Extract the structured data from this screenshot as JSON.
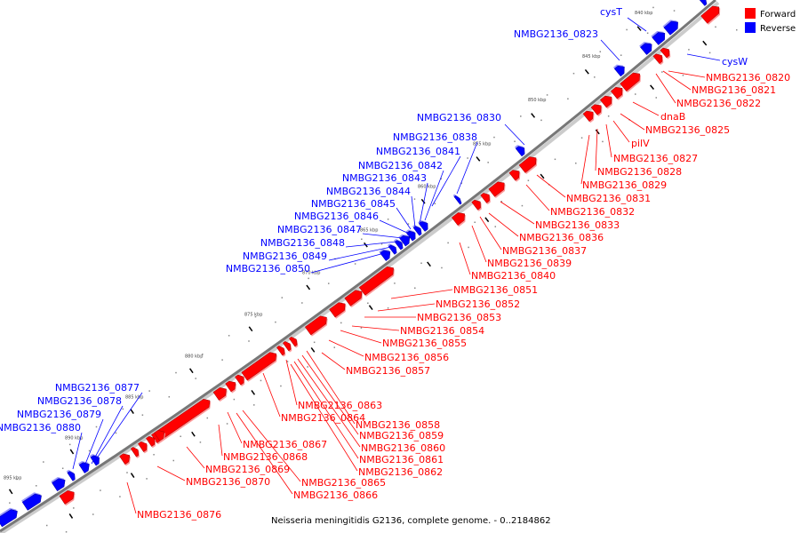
{
  "colors": {
    "forward": "#ff0000",
    "reverse": "#0000ff",
    "backbone": "#888888"
  },
  "legend": {
    "forward": "Forward",
    "reverse": "Reverse"
  },
  "caption": "Neisseria meningitidis G2136, complete genome. - 0..2184862",
  "scale_ticks": [
    "840 kbp",
    "845 kbp",
    "850 kbp",
    "855 kbp",
    "860 kbp",
    "865 kbp",
    "870 kbp",
    "875 kbp",
    "880 kbp",
    "885 kbp",
    "890 kbp",
    "895 kbp"
  ],
  "labels": [
    {
      "text": "cysT",
      "strand": "reverse"
    },
    {
      "text": "NMBG2136_0823",
      "strand": "reverse"
    },
    {
      "text": "cysW",
      "strand": "reverse"
    },
    {
      "text": "NMBG2136_0830",
      "strand": "reverse"
    },
    {
      "text": "NMBG2136_0838",
      "strand": "reverse"
    },
    {
      "text": "NMBG2136_0841",
      "strand": "reverse"
    },
    {
      "text": "NMBG2136_0842",
      "strand": "reverse"
    },
    {
      "text": "NMBG2136_0843",
      "strand": "reverse"
    },
    {
      "text": "NMBG2136_0844",
      "strand": "reverse"
    },
    {
      "text": "NMBG2136_0845",
      "strand": "reverse"
    },
    {
      "text": "NMBG2136_0846",
      "strand": "reverse"
    },
    {
      "text": "NMBG2136_0847",
      "strand": "reverse"
    },
    {
      "text": "NMBG2136_0848",
      "strand": "reverse"
    },
    {
      "text": "NMBG2136_0849",
      "strand": "reverse"
    },
    {
      "text": "NMBG2136_0850",
      "strand": "reverse"
    },
    {
      "text": "NMBG2136_0877",
      "strand": "reverse"
    },
    {
      "text": "NMBG2136_0878",
      "strand": "reverse"
    },
    {
      "text": "NMBG2136_0879",
      "strand": "reverse"
    },
    {
      "text": "NMBG2136_0880",
      "strand": "reverse"
    },
    {
      "text": "NMBG2136_0820",
      "strand": "forward"
    },
    {
      "text": "NMBG2136_0821",
      "strand": "forward"
    },
    {
      "text": "NMBG2136_0822",
      "strand": "forward"
    },
    {
      "text": "dnaB",
      "strand": "forward"
    },
    {
      "text": "NMBG2136_0825",
      "strand": "forward"
    },
    {
      "text": "pilV",
      "strand": "forward"
    },
    {
      "text": "NMBG2136_0827",
      "strand": "forward"
    },
    {
      "text": "NMBG2136_0828",
      "strand": "forward"
    },
    {
      "text": "NMBG2136_0829",
      "strand": "forward"
    },
    {
      "text": "NMBG2136_0831",
      "strand": "forward"
    },
    {
      "text": "NMBG2136_0832",
      "strand": "forward"
    },
    {
      "text": "NMBG2136_0833",
      "strand": "forward"
    },
    {
      "text": "NMBG2136_0836",
      "strand": "forward"
    },
    {
      "text": "NMBG2136_0837",
      "strand": "forward"
    },
    {
      "text": "NMBG2136_0839",
      "strand": "forward"
    },
    {
      "text": "NMBG2136_0840",
      "strand": "forward"
    },
    {
      "text": "NMBG2136_0851",
      "strand": "forward"
    },
    {
      "text": "NMBG2136_0852",
      "strand": "forward"
    },
    {
      "text": "NMBG2136_0853",
      "strand": "forward"
    },
    {
      "text": "NMBG2136_0854",
      "strand": "forward"
    },
    {
      "text": "NMBG2136_0855",
      "strand": "forward"
    },
    {
      "text": "NMBG2136_0856",
      "strand": "forward"
    },
    {
      "text": "NMBG2136_0857",
      "strand": "forward"
    },
    {
      "text": "NMBG2136_0863",
      "strand": "forward"
    },
    {
      "text": "NMBG2136_0864",
      "strand": "forward"
    },
    {
      "text": "NMBG2136_0858",
      "strand": "forward"
    },
    {
      "text": "NMBG2136_0859",
      "strand": "forward"
    },
    {
      "text": "NMBG2136_0860",
      "strand": "forward"
    },
    {
      "text": "NMBG2136_0861",
      "strand": "forward"
    },
    {
      "text": "NMBG2136_0862",
      "strand": "forward"
    },
    {
      "text": "NMBG2136_0865",
      "strand": "forward"
    },
    {
      "text": "NMBG2136_0866",
      "strand": "forward"
    },
    {
      "text": "NMBG2136_0867",
      "strand": "forward"
    },
    {
      "text": "NMBG2136_0868",
      "strand": "forward"
    },
    {
      "text": "NMBG2136_0869",
      "strand": "forward"
    },
    {
      "text": "NMBG2136_0870",
      "strand": "forward"
    },
    {
      "text": "NMBG2136_0876",
      "strand": "forward"
    }
  ]
}
